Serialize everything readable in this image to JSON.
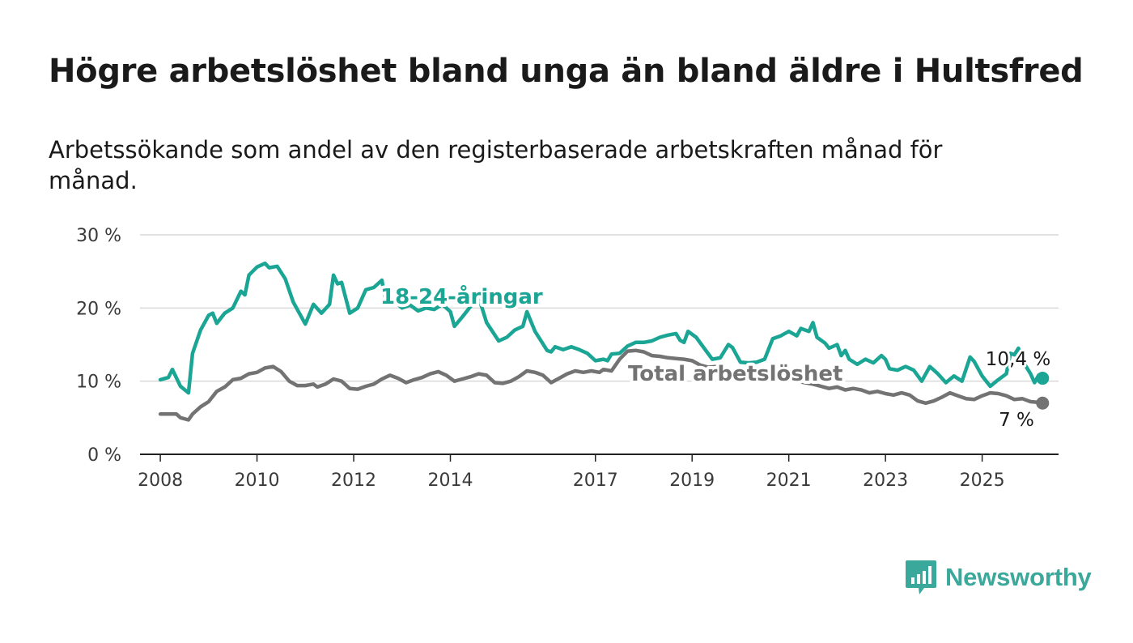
{
  "title": "Högre arbetslöshet bland unga än bland äldre i Hultsfred",
  "subtitle": "Arbetssökande som andel av den registerbaserade arbetskraften månad för månad.",
  "brand": {
    "name": "Newsworthy",
    "color": "#3aa89a",
    "icon": "bar-chart-speech-bubble-icon"
  },
  "chart_data": {
    "type": "line",
    "x_ticks": [
      "2008",
      "2010",
      "2012",
      "2014",
      "2017",
      "2019",
      "2021",
      "2023",
      "2025"
    ],
    "y_ticks": [
      "0 %",
      "10 %",
      "20 %",
      "30 %"
    ],
    "ylim": [
      0,
      30
    ],
    "xlim": [
      "2007-08",
      "2026-08"
    ],
    "grid": true,
    "legend": "inline labels",
    "series": [
      {
        "name": "18-24-åringar",
        "color": "#1aa594",
        "end_label": "10,4 %",
        "points": [
          [
            "2008-01",
            10.2
          ],
          [
            "2008-03",
            10.5
          ],
          [
            "2008-04",
            11.6
          ],
          [
            "2008-06",
            9.3
          ],
          [
            "2008-08",
            8.4
          ],
          [
            "2008-09",
            13.8
          ],
          [
            "2008-11",
            17.0
          ],
          [
            "2009-01",
            19.0
          ],
          [
            "2009-02",
            19.3
          ],
          [
            "2009-03",
            17.9
          ],
          [
            "2009-05",
            19.3
          ],
          [
            "2009-07",
            20.0
          ],
          [
            "2009-09",
            22.3
          ],
          [
            "2009-10",
            21.8
          ],
          [
            "2009-11",
            24.5
          ],
          [
            "2010-01",
            25.6
          ],
          [
            "2010-03",
            26.1
          ],
          [
            "2010-04",
            25.5
          ],
          [
            "2010-06",
            25.7
          ],
          [
            "2010-08",
            24.0
          ],
          [
            "2010-10",
            20.8
          ],
          [
            "2011-01",
            17.8
          ],
          [
            "2011-03",
            20.5
          ],
          [
            "2011-05",
            19.3
          ],
          [
            "2011-07",
            20.5
          ],
          [
            "2011-08",
            24.5
          ],
          [
            "2011-09",
            23.3
          ],
          [
            "2011-10",
            23.5
          ],
          [
            "2011-12",
            19.3
          ],
          [
            "2012-02",
            20.0
          ],
          [
            "2012-04",
            22.5
          ],
          [
            "2012-06",
            22.8
          ],
          [
            "2012-08",
            23.8
          ],
          [
            "2012-09",
            20.6
          ],
          [
            "2012-11",
            21.0
          ],
          [
            "2013-01",
            20.0
          ],
          [
            "2013-03",
            20.4
          ],
          [
            "2013-05",
            19.6
          ],
          [
            "2013-07",
            20.0
          ],
          [
            "2013-09",
            19.8
          ],
          [
            "2013-11",
            20.5
          ],
          [
            "2014-01",
            19.5
          ],
          [
            "2014-02",
            17.5
          ],
          [
            "2014-04",
            18.8
          ],
          [
            "2014-06",
            20.2
          ],
          [
            "2014-08",
            21.5
          ],
          [
            "2014-10",
            18.0
          ],
          [
            "2015-01",
            15.5
          ],
          [
            "2015-03",
            16.0
          ],
          [
            "2015-05",
            17.0
          ],
          [
            "2015-07",
            17.5
          ],
          [
            "2015-08",
            19.5
          ],
          [
            "2015-10",
            16.8
          ],
          [
            "2016-01",
            14.2
          ],
          [
            "2016-02",
            14.0
          ],
          [
            "2016-03",
            14.7
          ],
          [
            "2016-05",
            14.3
          ],
          [
            "2016-07",
            14.7
          ],
          [
            "2016-09",
            14.3
          ],
          [
            "2016-11",
            13.8
          ],
          [
            "2017-01",
            12.8
          ],
          [
            "2017-03",
            13.0
          ],
          [
            "2017-04",
            12.8
          ],
          [
            "2017-05",
            13.7
          ],
          [
            "2017-07",
            13.8
          ],
          [
            "2017-09",
            14.8
          ],
          [
            "2017-11",
            15.3
          ],
          [
            "2018-01",
            15.3
          ],
          [
            "2018-03",
            15.5
          ],
          [
            "2018-05",
            16.0
          ],
          [
            "2018-07",
            16.3
          ],
          [
            "2018-09",
            16.5
          ],
          [
            "2018-10",
            15.6
          ],
          [
            "2018-11",
            15.3
          ],
          [
            "2018-12",
            16.8
          ],
          [
            "2019-02",
            16.0
          ],
          [
            "2019-04",
            14.5
          ],
          [
            "2019-06",
            13.0
          ],
          [
            "2019-08",
            13.2
          ],
          [
            "2019-10",
            15.0
          ],
          [
            "2019-11",
            14.6
          ],
          [
            "2020-01",
            12.6
          ],
          [
            "2020-03",
            12.5
          ],
          [
            "2020-05",
            12.6
          ],
          [
            "2020-07",
            13.0
          ],
          [
            "2020-09",
            15.8
          ],
          [
            "2020-11",
            16.2
          ],
          [
            "2021-01",
            16.8
          ],
          [
            "2021-03",
            16.2
          ],
          [
            "2021-04",
            17.2
          ],
          [
            "2021-06",
            16.8
          ],
          [
            "2021-07",
            18.0
          ],
          [
            "2021-08",
            16.0
          ],
          [
            "2021-10",
            15.2
          ],
          [
            "2021-11",
            14.5
          ],
          [
            "2022-01",
            15.0
          ],
          [
            "2022-02",
            13.5
          ],
          [
            "2022-03",
            14.2
          ],
          [
            "2022-04",
            13.0
          ],
          [
            "2022-06",
            12.3
          ],
          [
            "2022-08",
            13.0
          ],
          [
            "2022-10",
            12.5
          ],
          [
            "2022-12",
            13.5
          ],
          [
            "2023-01",
            13.0
          ],
          [
            "2023-02",
            11.7
          ],
          [
            "2023-04",
            11.5
          ],
          [
            "2023-06",
            12.0
          ],
          [
            "2023-08",
            11.5
          ],
          [
            "2023-10",
            10.0
          ],
          [
            "2023-12",
            12.0
          ],
          [
            "2024-02",
            11.0
          ],
          [
            "2024-04",
            9.8
          ],
          [
            "2024-06",
            10.7
          ],
          [
            "2024-08",
            10.0
          ],
          [
            "2024-10",
            13.3
          ],
          [
            "2024-11",
            12.7
          ],
          [
            "2025-01",
            10.7
          ],
          [
            "2025-03",
            9.3
          ],
          [
            "2025-05",
            10.2
          ],
          [
            "2025-07",
            11.0
          ],
          [
            "2025-08",
            13.8
          ],
          [
            "2025-09",
            13.6
          ],
          [
            "2025-10",
            14.5
          ],
          [
            "2025-11",
            12.8
          ],
          [
            "2026-01",
            11.0
          ],
          [
            "2026-02",
            9.8
          ],
          [
            "2026-03",
            10.8
          ],
          [
            "2026-04",
            10.4
          ]
        ]
      },
      {
        "name": "Total arbetslöshet",
        "color": "#737373",
        "end_label": "7 %",
        "points": [
          [
            "2008-01",
            5.5
          ],
          [
            "2008-03",
            5.5
          ],
          [
            "2008-05",
            5.5
          ],
          [
            "2008-06",
            5.0
          ],
          [
            "2008-08",
            4.7
          ],
          [
            "2008-09",
            5.5
          ],
          [
            "2008-11",
            6.5
          ],
          [
            "2009-01",
            7.2
          ],
          [
            "2009-03",
            8.6
          ],
          [
            "2009-05",
            9.2
          ],
          [
            "2009-07",
            10.2
          ],
          [
            "2009-09",
            10.4
          ],
          [
            "2009-11",
            11.0
          ],
          [
            "2010-01",
            11.2
          ],
          [
            "2010-03",
            11.8
          ],
          [
            "2010-05",
            12.0
          ],
          [
            "2010-07",
            11.3
          ],
          [
            "2010-09",
            10.0
          ],
          [
            "2010-11",
            9.4
          ],
          [
            "2011-01",
            9.4
          ],
          [
            "2011-03",
            9.6
          ],
          [
            "2011-04",
            9.2
          ],
          [
            "2011-06",
            9.6
          ],
          [
            "2011-08",
            10.3
          ],
          [
            "2011-10",
            10.0
          ],
          [
            "2011-12",
            9.0
          ],
          [
            "2012-02",
            8.9
          ],
          [
            "2012-04",
            9.3
          ],
          [
            "2012-06",
            9.6
          ],
          [
            "2012-08",
            10.3
          ],
          [
            "2012-10",
            10.8
          ],
          [
            "2012-12",
            10.4
          ],
          [
            "2013-02",
            9.8
          ],
          [
            "2013-04",
            10.2
          ],
          [
            "2013-06",
            10.5
          ],
          [
            "2013-08",
            11.0
          ],
          [
            "2013-10",
            11.3
          ],
          [
            "2013-12",
            10.8
          ],
          [
            "2014-02",
            10.0
          ],
          [
            "2014-04",
            10.3
          ],
          [
            "2014-06",
            10.6
          ],
          [
            "2014-08",
            11.0
          ],
          [
            "2014-10",
            10.8
          ],
          [
            "2014-12",
            9.8
          ],
          [
            "2015-02",
            9.7
          ],
          [
            "2015-04",
            10.0
          ],
          [
            "2015-06",
            10.6
          ],
          [
            "2015-08",
            11.4
          ],
          [
            "2015-10",
            11.2
          ],
          [
            "2015-12",
            10.8
          ],
          [
            "2016-02",
            9.8
          ],
          [
            "2016-04",
            10.4
          ],
          [
            "2016-06",
            11.0
          ],
          [
            "2016-08",
            11.4
          ],
          [
            "2016-10",
            11.2
          ],
          [
            "2016-12",
            11.4
          ],
          [
            "2017-02",
            11.2
          ],
          [
            "2017-03",
            11.6
          ],
          [
            "2017-05",
            11.4
          ],
          [
            "2017-07",
            13.0
          ],
          [
            "2017-09",
            14.1
          ],
          [
            "2017-11",
            14.2
          ],
          [
            "2018-01",
            14.0
          ],
          [
            "2018-03",
            13.5
          ],
          [
            "2018-05",
            13.4
          ],
          [
            "2018-07",
            13.2
          ],
          [
            "2018-09",
            13.1
          ],
          [
            "2018-11",
            13.0
          ],
          [
            "2019-01",
            12.8
          ],
          [
            "2019-03",
            12.2
          ],
          [
            "2019-05",
            11.9
          ],
          [
            "2019-07",
            12.0
          ],
          [
            "2019-09",
            11.7
          ],
          [
            "2019-11",
            11.4
          ],
          [
            "2020-01",
            11.0
          ],
          [
            "2020-03",
            10.8
          ],
          [
            "2020-05",
            10.4
          ],
          [
            "2020-07",
            10.4
          ],
          [
            "2020-09",
            10.2
          ],
          [
            "2020-11",
            10.3
          ],
          [
            "2021-01",
            10.2
          ],
          [
            "2021-03",
            10.0
          ],
          [
            "2021-05",
            9.8
          ],
          [
            "2021-07",
            9.6
          ],
          [
            "2021-09",
            9.3
          ],
          [
            "2021-11",
            9.0
          ],
          [
            "2022-01",
            9.2
          ],
          [
            "2022-03",
            8.8
          ],
          [
            "2022-05",
            9.0
          ],
          [
            "2022-07",
            8.8
          ],
          [
            "2022-09",
            8.4
          ],
          [
            "2022-11",
            8.6
          ],
          [
            "2023-01",
            8.3
          ],
          [
            "2023-03",
            8.1
          ],
          [
            "2023-05",
            8.4
          ],
          [
            "2023-07",
            8.1
          ],
          [
            "2023-09",
            7.3
          ],
          [
            "2023-11",
            7.0
          ],
          [
            "2024-01",
            7.3
          ],
          [
            "2024-03",
            7.8
          ],
          [
            "2024-05",
            8.4
          ],
          [
            "2024-07",
            8.0
          ],
          [
            "2024-09",
            7.6
          ],
          [
            "2024-11",
            7.5
          ],
          [
            "2025-01",
            8.0
          ],
          [
            "2025-03",
            8.4
          ],
          [
            "2025-05",
            8.3
          ],
          [
            "2025-07",
            8.0
          ],
          [
            "2025-09",
            7.5
          ],
          [
            "2025-11",
            7.6
          ],
          [
            "2026-01",
            7.2
          ],
          [
            "2026-03",
            7.1
          ],
          [
            "2026-04",
            7.0
          ]
        ]
      }
    ]
  }
}
